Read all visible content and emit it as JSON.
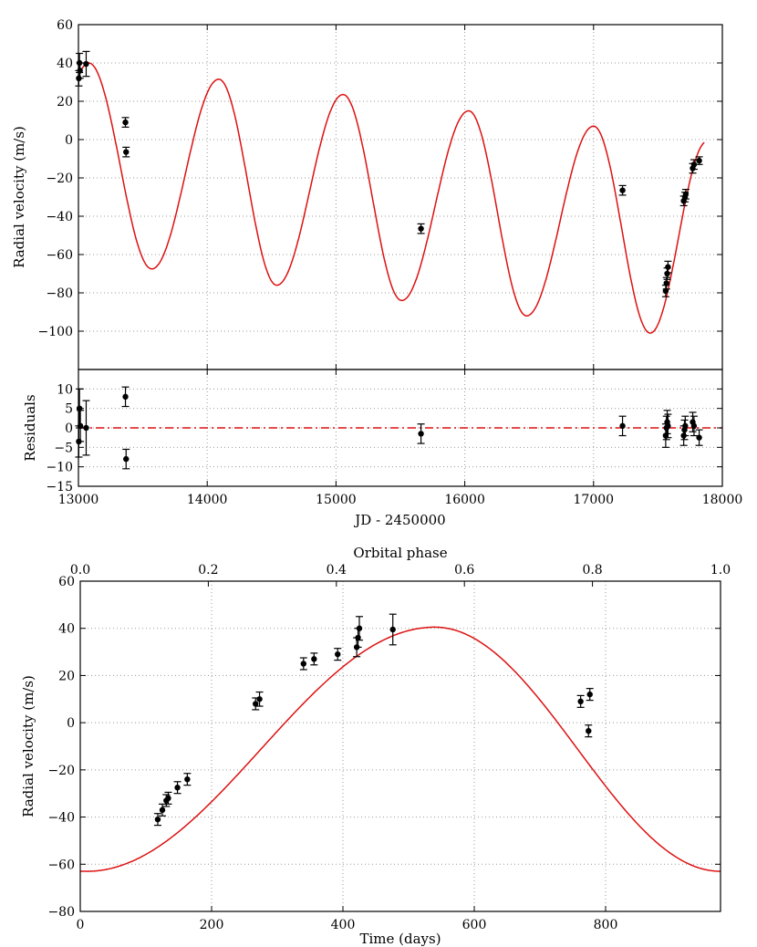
{
  "colors": {
    "model": "#dd1111",
    "data": "#000000",
    "grid": "#999999",
    "residual_zero": "#dd1111"
  },
  "chart_data": [
    {
      "id": "rv_time_series",
      "type": "scatter",
      "xlabel": "",
      "ylabel": "Radial velocity (m/s)",
      "xlim": [
        13000,
        18000
      ],
      "ylim": [
        -120,
        60
      ],
      "yticks": [
        -100,
        -80,
        -60,
        -40,
        -20,
        0,
        20,
        40,
        60
      ],
      "grid": true,
      "model_curve": {
        "color": "#dd1111",
        "maxima": [
          [
            13080,
            40
          ],
          [
            14090,
            31.5
          ],
          [
            15055,
            23.5
          ],
          [
            16030,
            15
          ],
          [
            17000,
            7
          ]
        ],
        "minima": [
          [
            13570,
            -67.5
          ],
          [
            14540,
            -76
          ],
          [
            15510,
            -84
          ],
          [
            16480,
            -92
          ],
          [
            17440,
            -101
          ]
        ]
      },
      "points": [
        {
          "x": 13003,
          "y": 32,
          "err": 4
        },
        {
          "x": 13008,
          "y": 40,
          "err": 5
        },
        {
          "x": 13012,
          "y": 36,
          "err": 4
        },
        {
          "x": 13060,
          "y": 39.5,
          "err": 6.5
        },
        {
          "x": 13365,
          "y": 9,
          "err": 2.5
        },
        {
          "x": 13370,
          "y": -6.5,
          "err": 2.5
        },
        {
          "x": 15660,
          "y": -46.5,
          "err": 2.5
        },
        {
          "x": 17225,
          "y": -26.5,
          "err": 2.5
        },
        {
          "x": 17560,
          "y": -79,
          "err": 3
        },
        {
          "x": 17566,
          "y": -75,
          "err": 3
        },
        {
          "x": 17572,
          "y": -70,
          "err": 3
        },
        {
          "x": 17578,
          "y": -66.5,
          "err": 3
        },
        {
          "x": 17700,
          "y": -32,
          "err": 2.5
        },
        {
          "x": 17710,
          "y": -30,
          "err": 2.5
        },
        {
          "x": 17716,
          "y": -28.5,
          "err": 2.5
        },
        {
          "x": 17770,
          "y": -15,
          "err": 2.5
        },
        {
          "x": 17780,
          "y": -13,
          "err": 2.5
        },
        {
          "x": 17820,
          "y": -11,
          "err": 2
        }
      ]
    },
    {
      "id": "residuals",
      "type": "scatter",
      "xlabel": "JD - 2450000",
      "ylabel": "Residuals",
      "xlim": [
        13000,
        18000
      ],
      "xticks": [
        13000,
        14000,
        15000,
        16000,
        17000,
        18000
      ],
      "ylim": [
        -15,
        15
      ],
      "yticks": [
        -15,
        -10,
        -5,
        0,
        5,
        10
      ],
      "grid": true,
      "zero_line": {
        "style": "dash-dot",
        "color": "#dd1111"
      },
      "points": [
        {
          "x": 13003,
          "y": -3.5,
          "err": 4
        },
        {
          "x": 13008,
          "y": 5,
          "err": 5
        },
        {
          "x": 13015,
          "y": 0.5,
          "err": 4
        },
        {
          "x": 13060,
          "y": 0,
          "err": 7
        },
        {
          "x": 13365,
          "y": 8,
          "err": 2.5
        },
        {
          "x": 13370,
          "y": -8,
          "err": 2.5
        },
        {
          "x": 15660,
          "y": -1.5,
          "err": 2.5
        },
        {
          "x": 17225,
          "y": 0.5,
          "err": 2.5
        },
        {
          "x": 17560,
          "y": -2,
          "err": 3
        },
        {
          "x": 17566,
          "y": 0,
          "err": 3
        },
        {
          "x": 17572,
          "y": 1.5,
          "err": 3
        },
        {
          "x": 17578,
          "y": 0.5,
          "err": 3
        },
        {
          "x": 17700,
          "y": -2,
          "err": 2.5
        },
        {
          "x": 17706,
          "y": -0.5,
          "err": 2.5
        },
        {
          "x": 17712,
          "y": 0.5,
          "err": 2.5
        },
        {
          "x": 17770,
          "y": 1.5,
          "err": 2.5
        },
        {
          "x": 17780,
          "y": 0.5,
          "err": 2.5
        },
        {
          "x": 17820,
          "y": -2.5,
          "err": 2
        }
      ]
    },
    {
      "id": "phase_folded",
      "type": "scatter",
      "xlabel": "Time (days)",
      "top_xlabel": "Orbital phase",
      "ylabel": "Radial velocity (m/s)",
      "xlim": [
        0,
        975
      ],
      "xticks": [
        0,
        200,
        400,
        600,
        800
      ],
      "top_xticks": [
        "0.0",
        "0.2",
        "0.4",
        "0.6",
        "0.8",
        "1.0"
      ],
      "ylim": [
        -80,
        60
      ],
      "yticks": [
        -80,
        -60,
        -40,
        -20,
        0,
        20,
        40,
        60
      ],
      "grid": true,
      "model_curve": {
        "color": "#dd1111",
        "min": [
          10,
          -63
        ],
        "max": [
          540,
          40.5
        ],
        "end": [
          975,
          -63
        ]
      },
      "points": [
        {
          "x": 118,
          "y": -41,
          "err": 2.5
        },
        {
          "x": 125,
          "y": -37,
          "err": 2.5
        },
        {
          "x": 131,
          "y": -33,
          "err": 2.5
        },
        {
          "x": 134,
          "y": -32,
          "err": 2.5
        },
        {
          "x": 148,
          "y": -27.5,
          "err": 2.5
        },
        {
          "x": 163,
          "y": -24,
          "err": 2.5
        },
        {
          "x": 267,
          "y": 8,
          "err": 2.5
        },
        {
          "x": 273,
          "y": 10,
          "err": 3
        },
        {
          "x": 340,
          "y": 25,
          "err": 2.5
        },
        {
          "x": 356,
          "y": 27,
          "err": 2.5
        },
        {
          "x": 392,
          "y": 29,
          "err": 2.5
        },
        {
          "x": 421,
          "y": 32,
          "err": 4
        },
        {
          "x": 423,
          "y": 36,
          "err": 4
        },
        {
          "x": 425,
          "y": 40,
          "err": 5
        },
        {
          "x": 476,
          "y": 39.5,
          "err": 6.5
        },
        {
          "x": 762,
          "y": 9,
          "err": 2.5
        },
        {
          "x": 774,
          "y": -3.5,
          "err": 2.5
        },
        {
          "x": 776,
          "y": 12,
          "err": 2.5
        }
      ]
    }
  ]
}
